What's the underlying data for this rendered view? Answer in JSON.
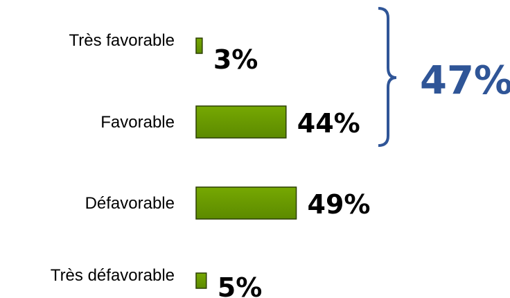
{
  "chart_data": {
    "type": "bar",
    "orientation": "horizontal",
    "categories": [
      "Très favorable",
      "Favorable",
      "Défavorable",
      "Très défavorable"
    ],
    "values": [
      3,
      44,
      49,
      5
    ],
    "value_labels": [
      "3%",
      "44%",
      "49%",
      "5%"
    ],
    "unit": "%",
    "bar_color": "#5c8a00",
    "bar_highlight": "#76a802",
    "bar_border": "#2b3f00",
    "bracket": {
      "covers": [
        "Très favorable",
        "Favorable"
      ],
      "total": 47,
      "total_label": "47%",
      "color": "#2f5597"
    },
    "title": "",
    "xlabel": "",
    "ylabel": "",
    "legend": "none",
    "grid": false
  }
}
